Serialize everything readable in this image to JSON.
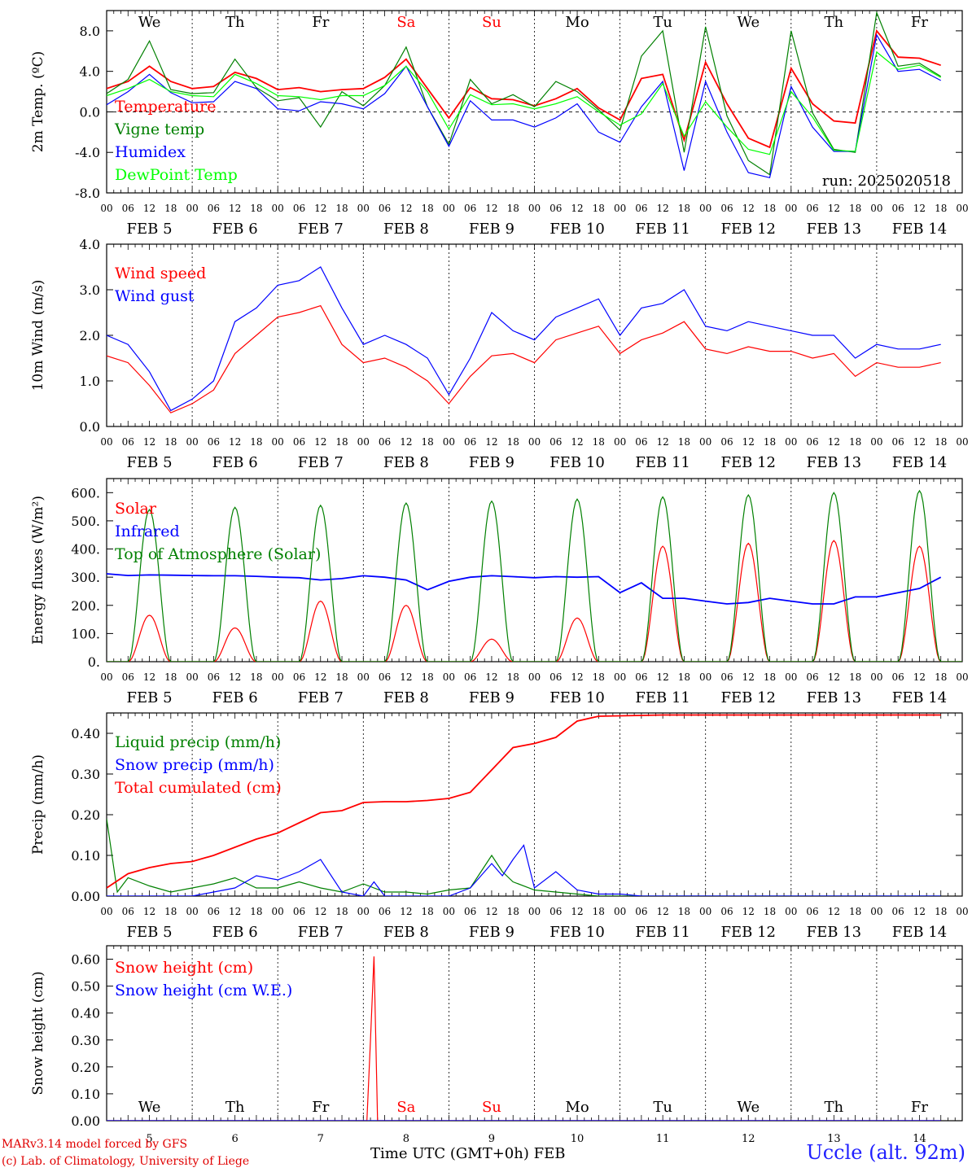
{
  "run_label": "run: 2025020518",
  "station": "Uccle (alt. 92m)",
  "credits": [
    "MARv3.14 model forced by GFS",
    "(c) Lab. of Climatology, University of Liege"
  ],
  "x_axis_title": "Time UTC (GMT+0h)",
  "month_label": "FEB",
  "days": [
    "5",
    "6",
    "7",
    "8",
    "9",
    "10",
    "11",
    "12",
    "13",
    "14"
  ],
  "weekdays": [
    "We",
    "Th",
    "Fr",
    "Sa",
    "Su",
    "Mo",
    "Tu",
    "We",
    "Th",
    "Fr"
  ],
  "weekend_color": "#ff0000",
  "hour_ticks": [
    "00",
    "06",
    "12",
    "18"
  ],
  "chart_data": [
    {
      "type": "line",
      "ylabel": "2m Temp. (ºC)",
      "ylim": [
        -8,
        10
      ],
      "yticks": [
        "-8.0",
        "-4.0",
        "0.0",
        "4.0",
        "8.0"
      ],
      "ytick_values": [
        -8,
        -4,
        0,
        4,
        8
      ],
      "zero_line": true,
      "x_unit": "hours since FEB 5 00 UTC",
      "series": [
        {
          "name": "Temperature",
          "color": "#ff0000",
          "x": [
            0,
            6,
            12,
            18,
            24,
            30,
            36,
            42,
            48,
            54,
            60,
            66,
            72,
            78,
            84,
            90,
            96,
            102,
            108,
            114,
            120,
            126,
            132,
            138,
            144,
            150,
            156,
            162,
            168,
            174,
            180,
            186,
            192,
            198,
            204,
            210,
            216,
            222,
            228,
            234
          ],
          "values": [
            2.3,
            3.0,
            4.5,
            3.0,
            2.3,
            2.5,
            3.9,
            3.3,
            2.2,
            2.4,
            2.0,
            2.2,
            2.3,
            3.4,
            5.2,
            2.3,
            -0.6,
            2.4,
            1.3,
            1.2,
            0.6,
            1.3,
            2.3,
            0.4,
            -0.8,
            3.3,
            3.7,
            -2.8,
            4.9,
            0.8,
            -2.6,
            -3.5,
            4.3,
            0.8,
            -0.9,
            -1.1,
            8.0,
            5.4,
            5.3,
            4.6
          ]
        },
        {
          "name": "Vigne temp",
          "color": "#008000",
          "x": [
            0,
            6,
            12,
            18,
            24,
            30,
            36,
            42,
            48,
            54,
            60,
            66,
            72,
            78,
            84,
            90,
            96,
            102,
            108,
            114,
            120,
            126,
            132,
            138,
            144,
            150,
            156,
            162,
            168,
            174,
            180,
            186,
            192,
            198,
            204,
            210,
            216,
            222,
            228,
            234
          ],
          "values": [
            1.8,
            3.2,
            7.0,
            2.2,
            1.8,
            1.9,
            5.2,
            2.4,
            1.1,
            1.4,
            -1.5,
            2.0,
            0.6,
            2.6,
            6.4,
            0.5,
            -3.2,
            3.2,
            0.8,
            1.7,
            0.5,
            3.0,
            2.0,
            0.2,
            -1.8,
            5.5,
            8.0,
            -4.0,
            8.4,
            -0.4,
            -4.8,
            -6.2,
            8.0,
            -0.1,
            -3.7,
            -4.0,
            9.8,
            4.5,
            4.8,
            3.5
          ]
        },
        {
          "name": "Humidex",
          "color": "#0000ff",
          "x": [
            0,
            6,
            12,
            18,
            24,
            30,
            36,
            42,
            48,
            54,
            60,
            66,
            72,
            78,
            84,
            90,
            96,
            102,
            108,
            114,
            120,
            126,
            132,
            138,
            144,
            150,
            156,
            162,
            168,
            174,
            180,
            186,
            192,
            198,
            204,
            210,
            216,
            222,
            228,
            234
          ],
          "values": [
            0.7,
            2.0,
            3.7,
            1.9,
            0.9,
            1.0,
            3.0,
            2.3,
            0.3,
            0.1,
            1.0,
            0.8,
            0.3,
            1.8,
            4.5,
            0.5,
            -3.4,
            1.1,
            -0.8,
            -0.8,
            -1.5,
            -0.6,
            0.8,
            -2.0,
            -3.0,
            0.5,
            3.0,
            -5.8,
            3.0,
            -2.0,
            -6.0,
            -6.5,
            2.5,
            -1.5,
            -3.9,
            -3.9,
            7.6,
            4.0,
            4.2,
            3.1
          ]
        },
        {
          "name": "DewPoint Temp",
          "color": "#00ff00",
          "x": [
            0,
            6,
            12,
            18,
            24,
            30,
            36,
            42,
            48,
            54,
            60,
            66,
            72,
            78,
            84,
            90,
            96,
            102,
            108,
            114,
            120,
            126,
            132,
            138,
            144,
            150,
            156,
            162,
            168,
            174,
            180,
            186,
            192,
            198,
            204,
            210,
            216,
            222,
            228,
            234
          ],
          "values": [
            1.6,
            2.3,
            3.2,
            2.0,
            1.6,
            1.5,
            3.7,
            2.8,
            1.6,
            1.5,
            1.2,
            1.6,
            1.6,
            2.6,
            4.5,
            2.0,
            -1.7,
            1.7,
            0.7,
            0.8,
            0.3,
            0.8,
            1.5,
            0.0,
            -1.3,
            -0.2,
            2.8,
            -2.4,
            1.0,
            -1.5,
            -3.7,
            -4.2,
            2.0,
            -0.5,
            -3.8,
            -3.9,
            5.9,
            4.2,
            4.6,
            3.4
          ]
        }
      ]
    },
    {
      "type": "line",
      "ylabel": "10m Wind (m/s)",
      "ylim": [
        0,
        4
      ],
      "yticks": [
        "0.0",
        "1.0",
        "2.0",
        "3.0",
        "4.0"
      ],
      "ytick_values": [
        0,
        1,
        2,
        3,
        4
      ],
      "x_unit": "hours since FEB 5 00 UTC",
      "series": [
        {
          "name": "Wind speed",
          "color": "#ff0000",
          "x": [
            0,
            6,
            12,
            18,
            24,
            30,
            36,
            42,
            48,
            54,
            60,
            66,
            72,
            78,
            84,
            90,
            96,
            102,
            108,
            114,
            120,
            126,
            132,
            138,
            144,
            150,
            156,
            162,
            168,
            174,
            180,
            186,
            192,
            198,
            204,
            210,
            216,
            222,
            228,
            234
          ],
          "values": [
            1.55,
            1.4,
            0.9,
            0.3,
            0.5,
            0.8,
            1.6,
            2.0,
            2.4,
            2.5,
            2.65,
            1.8,
            1.4,
            1.5,
            1.3,
            1.0,
            0.5,
            1.1,
            1.55,
            1.6,
            1.4,
            1.9,
            2.05,
            2.2,
            1.6,
            1.9,
            2.05,
            2.3,
            1.7,
            1.6,
            1.75,
            1.65,
            1.65,
            1.5,
            1.6,
            1.1,
            1.4,
            1.3,
            1.3,
            1.4
          ]
        },
        {
          "name": "Wind gust",
          "color": "#0000ff",
          "x": [
            0,
            6,
            12,
            18,
            24,
            30,
            36,
            42,
            48,
            54,
            60,
            66,
            72,
            78,
            84,
            90,
            96,
            102,
            108,
            114,
            120,
            126,
            132,
            138,
            144,
            150,
            156,
            162,
            168,
            174,
            180,
            186,
            192,
            198,
            204,
            210,
            216,
            222,
            228,
            234
          ],
          "values": [
            2.0,
            1.8,
            1.2,
            0.35,
            0.6,
            1.0,
            2.3,
            2.6,
            3.1,
            3.2,
            3.5,
            2.6,
            1.8,
            2.0,
            1.8,
            1.5,
            0.7,
            1.5,
            2.5,
            2.1,
            1.9,
            2.4,
            2.6,
            2.8,
            2.0,
            2.6,
            2.7,
            3.0,
            2.2,
            2.1,
            2.3,
            2.2,
            2.1,
            2.0,
            2.0,
            1.5,
            1.8,
            1.7,
            1.7,
            1.8
          ]
        }
      ]
    },
    {
      "type": "line",
      "ylabel": "Energy fluxes (W/m²)",
      "ylim": [
        0,
        650
      ],
      "yticks": [
        "0.",
        "100.",
        "200.",
        "300.",
        "400.",
        "500.",
        "600."
      ],
      "ytick_values": [
        0,
        100,
        200,
        300,
        400,
        500,
        600
      ],
      "x_unit": "hours since FEB 5 00 UTC",
      "series": [
        {
          "name": "Solar",
          "color": "#ff0000",
          "peaks": [
            {
              "x": 12,
              "y": 165
            },
            {
              "x": 36,
              "y": 120
            },
            {
              "x": 60,
              "y": 215
            },
            {
              "x": 84,
              "y": 200
            },
            {
              "x": 108,
              "y": 80
            },
            {
              "x": 132,
              "y": 155
            },
            {
              "x": 156,
              "y": 410
            },
            {
              "x": 180,
              "y": 420
            },
            {
              "x": 204,
              "y": 430
            },
            {
              "x": 228,
              "y": 410
            }
          ]
        },
        {
          "name": "Infrared",
          "color": "#0000ff",
          "x": [
            0,
            6,
            12,
            18,
            24,
            30,
            36,
            42,
            48,
            54,
            60,
            66,
            72,
            78,
            84,
            90,
            96,
            102,
            108,
            114,
            120,
            126,
            132,
            138,
            144,
            150,
            156,
            162,
            168,
            174,
            180,
            186,
            192,
            198,
            204,
            210,
            216,
            222,
            228,
            234
          ],
          "values": [
            312,
            306,
            308,
            307,
            306,
            305,
            305,
            303,
            300,
            298,
            290,
            295,
            305,
            300,
            290,
            255,
            285,
            300,
            305,
            302,
            298,
            302,
            300,
            302,
            245,
            280,
            225,
            225,
            215,
            205,
            210,
            225,
            215,
            205,
            205,
            230,
            230,
            245,
            260,
            300
          ]
        },
        {
          "name": "Top of Atmosphere (Solar)",
          "color": "#008000",
          "peaks": [
            {
              "x": 12,
              "y": 540
            },
            {
              "x": 36,
              "y": 548
            },
            {
              "x": 60,
              "y": 555
            },
            {
              "x": 84,
              "y": 563
            },
            {
              "x": 108,
              "y": 570
            },
            {
              "x": 132,
              "y": 577
            },
            {
              "x": 156,
              "y": 585
            },
            {
              "x": 180,
              "y": 592
            },
            {
              "x": 204,
              "y": 600
            },
            {
              "x": 228,
              "y": 607
            }
          ]
        }
      ]
    },
    {
      "type": "line",
      "ylabel": "Precip (mm/h)",
      "ylim": [
        0,
        0.45
      ],
      "yticks": [
        "0.00",
        "0.10",
        "0.20",
        "0.30",
        "0.40"
      ],
      "ytick_values": [
        0,
        0.1,
        0.2,
        0.3,
        0.4
      ],
      "x_unit": "hours since FEB 5 00 UTC",
      "series": [
        {
          "name": "Liquid precip (mm/h)",
          "color": "#008000",
          "x": [
            0,
            3,
            6,
            12,
            18,
            24,
            30,
            36,
            42,
            48,
            54,
            60,
            66,
            72,
            78,
            84,
            90,
            96,
            102,
            108,
            111,
            114,
            120,
            126,
            132,
            138,
            144,
            150,
            234
          ],
          "values": [
            0.19,
            0.01,
            0.045,
            0.025,
            0.01,
            0.02,
            0.03,
            0.045,
            0.02,
            0.02,
            0.035,
            0.02,
            0.01,
            0.03,
            0.01,
            0.01,
            0.005,
            0.015,
            0.02,
            0.1,
            0.06,
            0.035,
            0.015,
            0.01,
            0.005,
            0.0,
            0.0,
            0.0,
            0.0
          ]
        },
        {
          "name": "Snow precip (mm/h)",
          "color": "#0000ff",
          "x": [
            0,
            6,
            12,
            18,
            24,
            30,
            36,
            42,
            48,
            54,
            60,
            66,
            72,
            75,
            78,
            84,
            90,
            96,
            102,
            108,
            111,
            114,
            117,
            120,
            126,
            132,
            138,
            144,
            150,
            234
          ],
          "values": [
            0.0,
            0.0,
            0.0,
            0.0,
            0.0,
            0.01,
            0.02,
            0.05,
            0.04,
            0.06,
            0.09,
            0.01,
            0.0,
            0.035,
            0.0,
            0.0,
            0.0,
            0.0,
            0.02,
            0.08,
            0.05,
            0.09,
            0.125,
            0.02,
            0.06,
            0.015,
            0.005,
            0.005,
            0.0,
            0.0
          ]
        },
        {
          "name": "Total cumulated (cm)",
          "color": "#ff0000",
          "x": [
            0,
            6,
            12,
            18,
            24,
            30,
            36,
            42,
            48,
            54,
            60,
            66,
            72,
            78,
            84,
            90,
            96,
            102,
            108,
            114,
            120,
            126,
            132,
            138,
            144,
            150,
            156,
            234
          ],
          "values": [
            0.02,
            0.055,
            0.07,
            0.08,
            0.085,
            0.1,
            0.12,
            0.14,
            0.155,
            0.18,
            0.205,
            0.21,
            0.23,
            0.232,
            0.232,
            0.235,
            0.24,
            0.255,
            0.31,
            0.365,
            0.375,
            0.39,
            0.43,
            0.442,
            0.443,
            0.444,
            0.445,
            0.445
          ]
        }
      ]
    },
    {
      "type": "line",
      "ylabel": "Snow height (cm)",
      "ylim": [
        0,
        0.65
      ],
      "yticks": [
        "0.00",
        "0.10",
        "0.20",
        "0.30",
        "0.40",
        "0.50",
        "0.60"
      ],
      "ytick_values": [
        0,
        0.1,
        0.2,
        0.3,
        0.4,
        0.5,
        0.6
      ],
      "x_unit": "hours since FEB 5 00 UTC",
      "series": [
        {
          "name": "Snow height (cm)",
          "color": "#ff0000",
          "x": [
            0,
            73,
            74,
            75,
            76,
            234
          ],
          "values": [
            0,
            0,
            0.3,
            0.61,
            0,
            0
          ]
        },
        {
          "name": "Snow height (cm W.E.)",
          "color": "#0000ff",
          "x": [
            0,
            234
          ],
          "values": [
            0,
            0
          ]
        }
      ]
    }
  ]
}
